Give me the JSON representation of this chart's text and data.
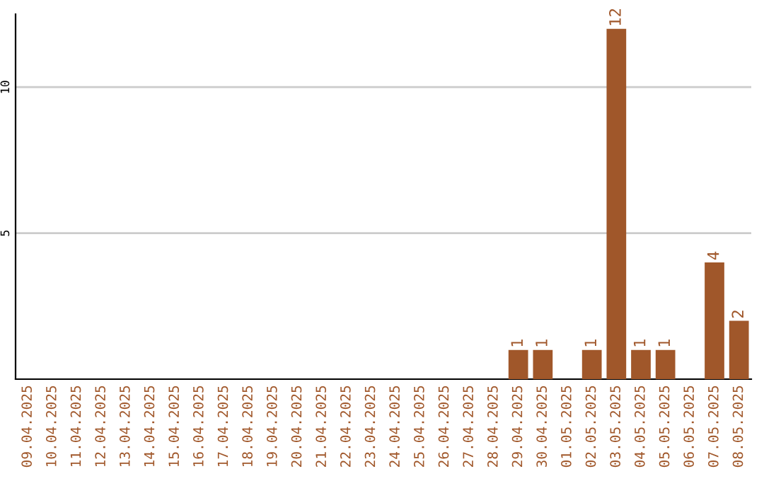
{
  "chart_data": {
    "type": "bar",
    "categories": [
      "09.04.2025",
      "10.04.2025",
      "11.04.2025",
      "12.04.2025",
      "13.04.2025",
      "14.04.2025",
      "15.04.2025",
      "16.04.2025",
      "17.04.2025",
      "18.04.2025",
      "19.04.2025",
      "20.04.2025",
      "21.04.2025",
      "22.04.2025",
      "23.04.2025",
      "24.04.2025",
      "25.04.2025",
      "26.04.2025",
      "27.04.2025",
      "28.04.2025",
      "29.04.2025",
      "30.04.2025",
      "01.05.2025",
      "02.05.2025",
      "03.05.2025",
      "04.05.2025",
      "05.05.2025",
      "06.05.2025",
      "07.05.2025",
      "08.05.2025"
    ],
    "values": [
      0,
      0,
      0,
      0,
      0,
      0,
      0,
      0,
      0,
      0,
      0,
      0,
      0,
      0,
      0,
      0,
      0,
      0,
      0,
      0,
      1,
      1,
      0,
      1,
      12,
      1,
      1,
      0,
      4,
      2
    ],
    "value_labels": [
      null,
      null,
      null,
      null,
      null,
      null,
      null,
      null,
      null,
      null,
      null,
      null,
      null,
      null,
      null,
      null,
      null,
      null,
      null,
      null,
      "1",
      "1",
      null,
      "1",
      "12",
      "1",
      "1",
      null,
      "4",
      "2"
    ],
    "color": "#a0572a",
    "ylim": [
      0,
      12.5
    ],
    "yticks": [
      5,
      10
    ],
    "grid": "y",
    "legend": false
  }
}
